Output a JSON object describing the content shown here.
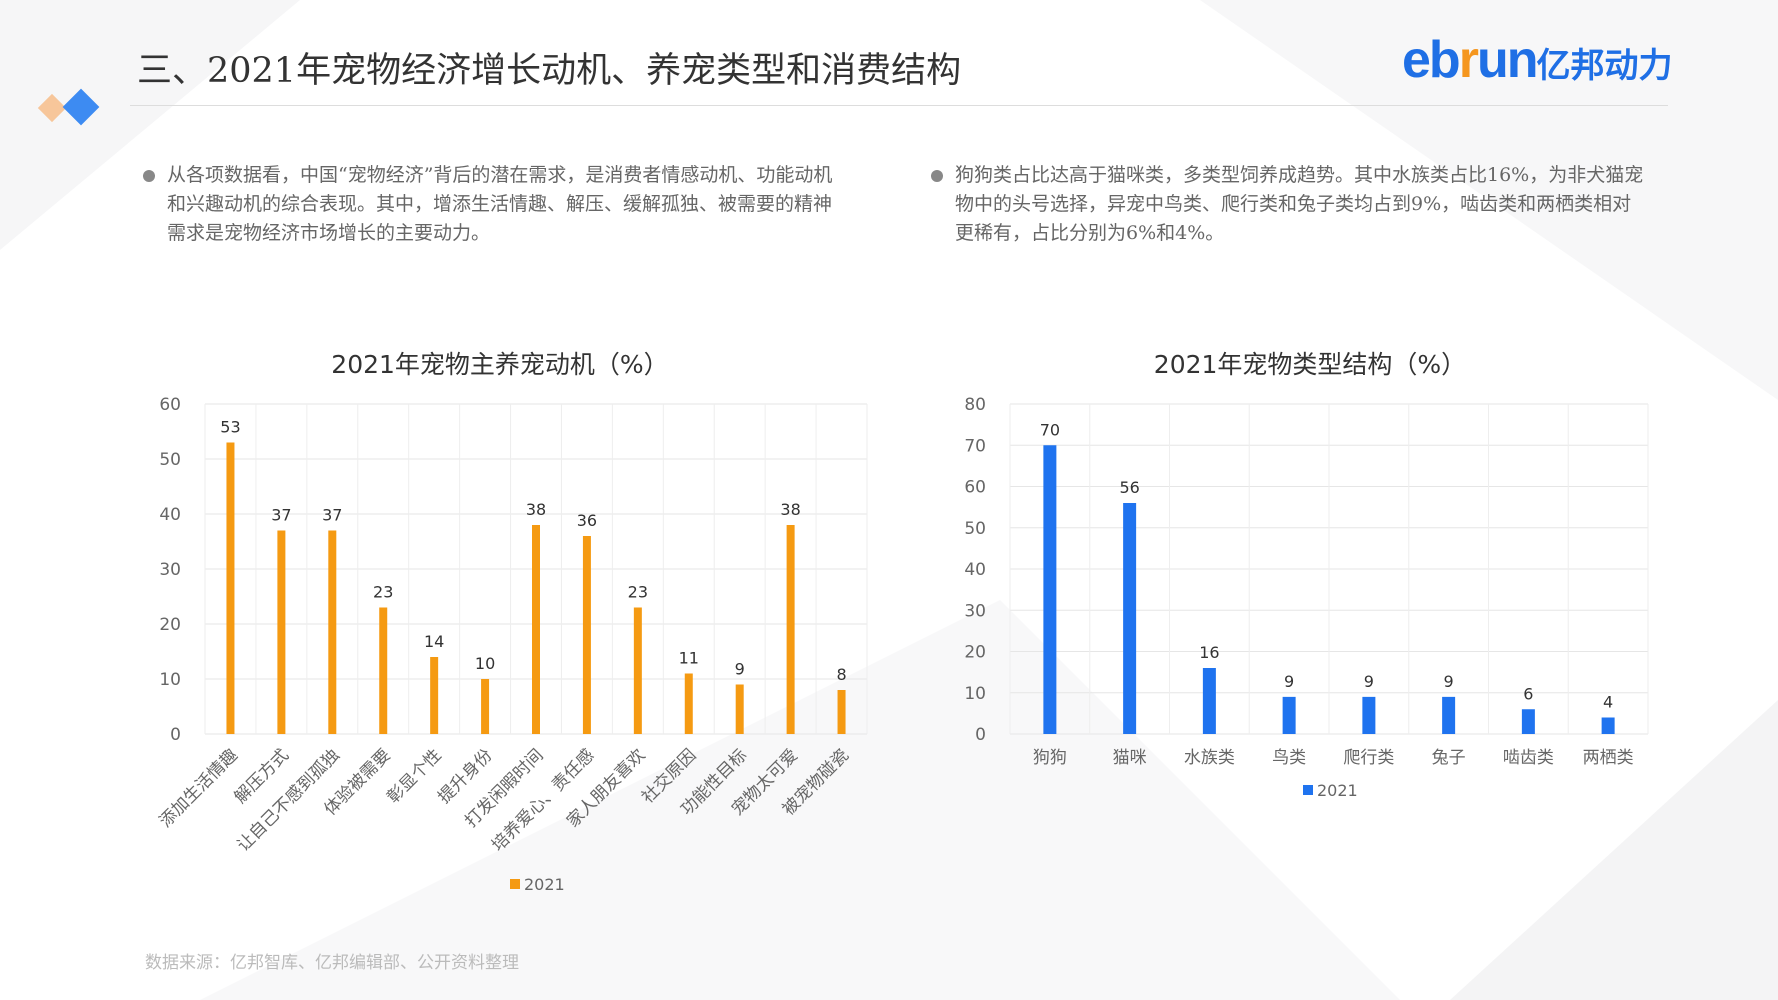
{
  "header": {
    "title": "三、2021年宠物经济增长动机、养宠类型和消费结构",
    "logo_text": "ebrun亿邦动力"
  },
  "bullets": [
    "从各项数据看，中国“宠物经济”背后的潜在需求，是消费者情感动机、功能动机和兴趣动机的综合表现。其中，增添生活情趣、解压、缓解孤独、被需要的精神需求是宠物经济市场增长的主要动力。",
    "狗狗类占比达高于猫咪类，多类型饲养成趋势。其中水族类占比16%，为非犬猫宠物中的头号选择，异宠中鸟类、爬行类和兔子类均占到9%，啮齿类和两栖类相对更稀有，占比分别为6%和4%。"
  ],
  "source": "数据来源：亿邦智库、亿邦编辑部、公开资料整理",
  "colors": {
    "orange": "#F59A12",
    "blue": "#1F73EF"
  },
  "chart_data": [
    {
      "type": "bar",
      "title": "2021年宠物主养宠动机（%）",
      "categories": [
        "添加生活情趣",
        "解压方式",
        "让自己不感到孤独",
        "体验被需要",
        "彰显个性",
        "提升身份",
        "打发闲暇时间",
        "培养爱心、责任感",
        "家人朋友喜欢",
        "社交原因",
        "功能性目标",
        "宠物太可爱",
        "被宠物碰瓷"
      ],
      "series": [
        {
          "name": "2021",
          "values": [
            53,
            37,
            37,
            23,
            14,
            10,
            38,
            36,
            23,
            11,
            9,
            38,
            8
          ]
        }
      ],
      "ylim": [
        0,
        60
      ],
      "yticks": [
        0,
        10,
        20,
        30,
        40,
        50,
        60
      ],
      "grid": true,
      "legend": "bottom",
      "color": "#F59A12"
    },
    {
      "type": "bar",
      "title": "2021年宠物类型结构（%）",
      "categories": [
        "狗狗",
        "猫咪",
        "水族类",
        "鸟类",
        "爬行类",
        "兔子",
        "啮齿类",
        "两栖类"
      ],
      "series": [
        {
          "name": "2021",
          "values": [
            70,
            56,
            16,
            9,
            9,
            9,
            6,
            4
          ]
        }
      ],
      "ylim": [
        0,
        80
      ],
      "yticks": [
        0,
        10,
        20,
        30,
        40,
        50,
        60,
        70,
        80
      ],
      "grid": true,
      "legend": "bottom",
      "color": "#1F73EF"
    }
  ]
}
